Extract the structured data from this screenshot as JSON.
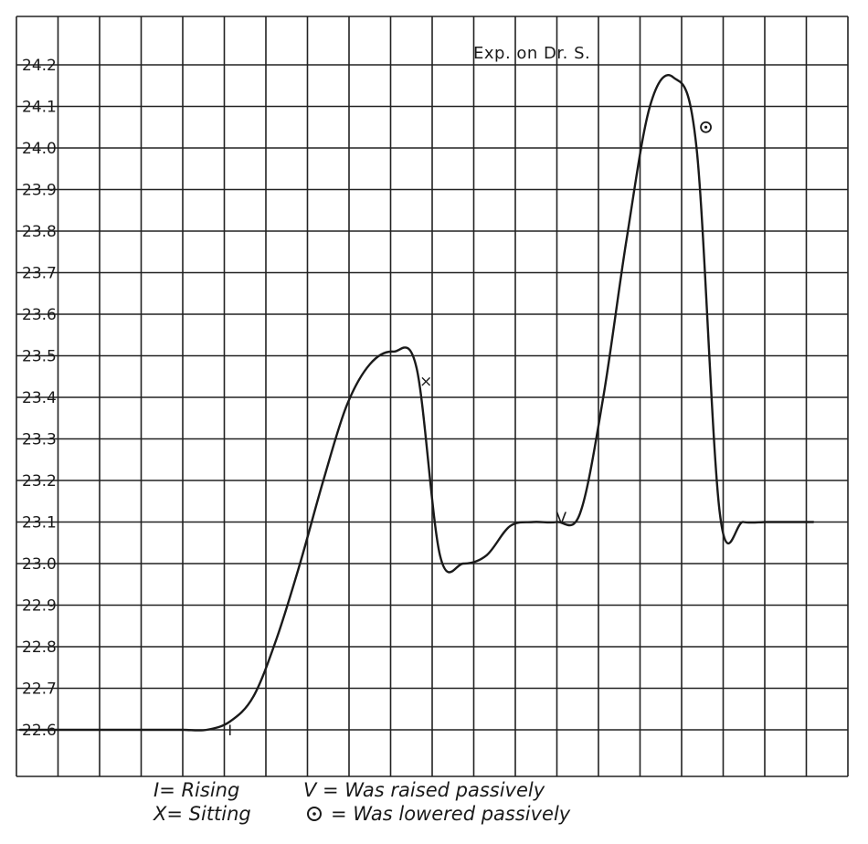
{
  "chart_data": {
    "type": "line",
    "title": "Exp. on Dr. S.",
    "xlabel": "",
    "ylabel": "",
    "ylim": [
      22.5,
      24.3
    ],
    "yticks": [
      {
        "value": 24.2,
        "label": "24.2"
      },
      {
        "value": 24.1,
        "label": "24.1"
      },
      {
        "value": 24.0,
        "label": "24.0"
      },
      {
        "value": 23.9,
        "label": "23.9"
      },
      {
        "value": 23.8,
        "label": "23.8"
      },
      {
        "value": 23.7,
        "label": "23.7"
      },
      {
        "value": 23.6,
        "label": "23.6"
      },
      {
        "value": 23.5,
        "label": "23.5"
      },
      {
        "value": 23.4,
        "label": "23.4"
      },
      {
        "value": 23.3,
        "label": "23.3"
      },
      {
        "value": 23.2,
        "label": "23.2"
      },
      {
        "value": 23.1,
        "label": "23.1"
      },
      {
        "value": 23.0,
        "label": "23.0"
      },
      {
        "value": 22.9,
        "label": "22.9"
      },
      {
        "value": 22.8,
        "label": "22.8"
      },
      {
        "value": 22.7,
        "label": "22.7"
      },
      {
        "value": 22.6,
        "label": "22.6"
      }
    ],
    "grid": true,
    "series": [
      {
        "x": [
          0.0,
          0.5,
          1.0,
          1.5,
          2.0,
          2.5,
          3.0,
          3.5,
          4.0,
          4.5,
          5.0,
          5.5,
          6.0,
          6.5,
          7.0,
          7.5,
          8.0,
          8.5,
          9.0,
          9.5,
          10.0,
          10.5,
          11.0,
          11.5,
          12.0,
          12.5,
          13.0,
          13.5,
          14.0,
          14.5,
          15.0,
          15.5,
          16.0,
          16.5,
          17.0
        ],
        "y": [
          22.6,
          22.6,
          22.6,
          22.6,
          22.6,
          22.6,
          22.6,
          22.6,
          22.6,
          22.62,
          22.68,
          22.82,
          23.0,
          23.2,
          23.38,
          23.48,
          23.51,
          23.47,
          23.02,
          23.0,
          23.02,
          23.09,
          23.1,
          23.1,
          23.12,
          23.4,
          23.78,
          24.1,
          24.17,
          24.0,
          23.12,
          23.1,
          23.1,
          23.1,
          23.1
        ]
      }
    ],
    "markers": [
      {
        "symbol": "I",
        "x": 4.5,
        "y": 22.6
      },
      {
        "symbol": "X",
        "x": 8.7,
        "y": 23.44
      },
      {
        "symbol": "V",
        "x": 11.6,
        "y": 23.11
      },
      {
        "symbol": "O",
        "x": 14.7,
        "y": 24.05
      }
    ],
    "annotations": [
      "I= Rising",
      "X= Sitting",
      "V = Was raised passively",
      "= Was lowered passively"
    ]
  }
}
